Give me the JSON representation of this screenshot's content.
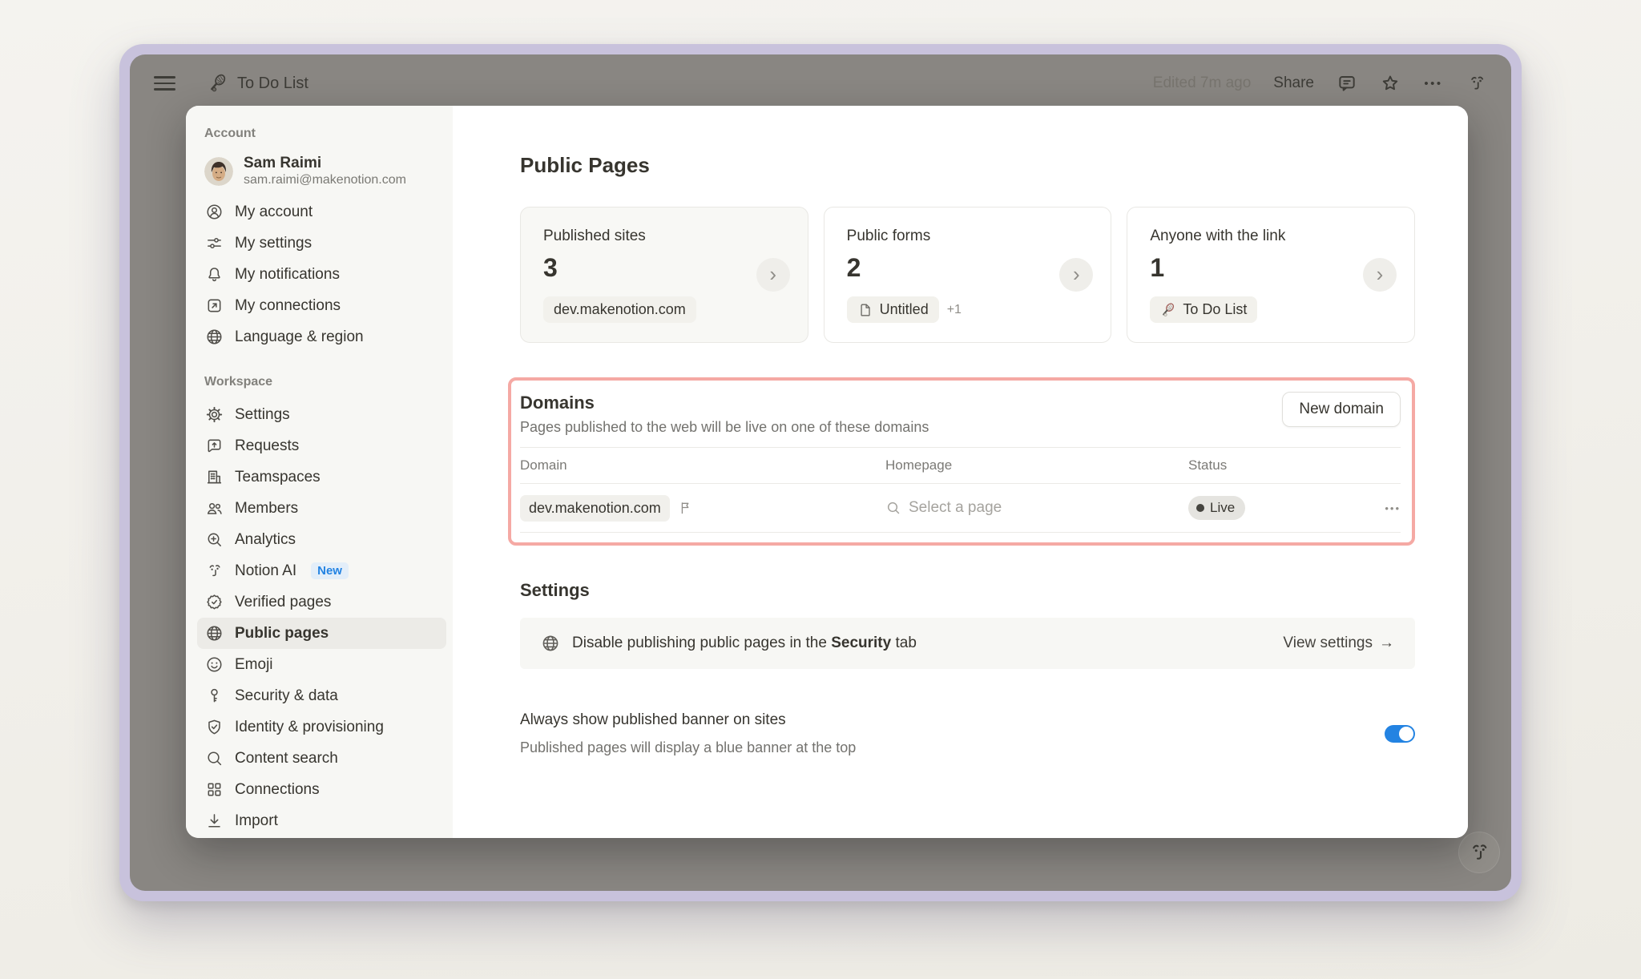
{
  "topbar": {
    "title": "To Do List",
    "page_icon": "tennis-racket-icon",
    "edited_label": "Edited 7m ago",
    "share_label": "Share",
    "icons": [
      "comment-icon",
      "star-icon",
      "ellipsis-icon",
      "notion-ai-icon"
    ]
  },
  "sidebar": {
    "account_section": {
      "title": "Account",
      "user": {
        "name": "Sam Raimi",
        "email": "sam.raimi@makenotion.com"
      },
      "items": [
        {
          "label": "My account",
          "icon": "person-circle-icon"
        },
        {
          "label": "My settings",
          "icon": "sliders-icon"
        },
        {
          "label": "My notifications",
          "icon": "bell-icon"
        },
        {
          "label": "My connections",
          "icon": "arrow-out-box-icon"
        },
        {
          "label": "Language & region",
          "icon": "globe-icon"
        }
      ]
    },
    "workspace_section": {
      "title": "Workspace",
      "items": [
        {
          "label": "Settings",
          "icon": "gear-icon"
        },
        {
          "label": "Requests",
          "icon": "request-bubble-icon"
        },
        {
          "label": "Teamspaces",
          "icon": "building-icon"
        },
        {
          "label": "Members",
          "icon": "people-icon"
        },
        {
          "label": "Analytics",
          "icon": "magnifier-plus-icon"
        },
        {
          "label": "Notion AI",
          "icon": "notion-ai-icon",
          "badge": "New"
        },
        {
          "label": "Verified pages",
          "icon": "seal-check-icon"
        },
        {
          "label": "Public pages",
          "icon": "globe-icon",
          "selected": true
        },
        {
          "label": "Emoji",
          "icon": "smiley-icon"
        },
        {
          "label": "Security & data",
          "icon": "key-icon"
        },
        {
          "label": "Identity & provisioning",
          "icon": "shield-check-icon"
        },
        {
          "label": "Content search",
          "icon": "magnifier-icon"
        },
        {
          "label": "Connections",
          "icon": "grid-icon"
        },
        {
          "label": "Import",
          "icon": "import-icon"
        }
      ]
    }
  },
  "main": {
    "title": "Public Pages",
    "cards": [
      {
        "label": "Published sites",
        "value": "3",
        "chip": {
          "text": "dev.makenotion.com"
        }
      },
      {
        "label": "Public forms",
        "value": "2",
        "chip": {
          "icon": "document-icon",
          "text": "Untitled"
        },
        "chip_suffix": "+1"
      },
      {
        "label": "Anyone with the link",
        "value": "1",
        "chip": {
          "icon": "tennis-racket-icon",
          "text": "To Do List"
        }
      }
    ],
    "domains": {
      "title": "Domains",
      "description": "Pages published to the web will be live on one of these domains",
      "button_label": "New domain",
      "columns": [
        "Domain",
        "Homepage",
        "Status"
      ],
      "rows": [
        {
          "domain": "dev.makenotion.com",
          "homepage_placeholder": "Select a page",
          "status": "Live"
        }
      ]
    },
    "settings": {
      "title": "Settings",
      "security_note": {
        "prefix": "Disable publishing public pages in the ",
        "bold": "Security",
        "suffix": " tab"
      },
      "view_settings_label": "View settings",
      "arrow": "→"
    },
    "banner_toggle": {
      "title": "Always show published banner on sites",
      "description": "Published pages will display a blue banner at the top",
      "enabled": true
    }
  },
  "colors": {
    "accent_blue": "#2383E2",
    "highlight_pink": "#F5A9A4",
    "live_pill_bg": "#E5E4E0",
    "sidebar_bg": "#F7F7F4"
  }
}
